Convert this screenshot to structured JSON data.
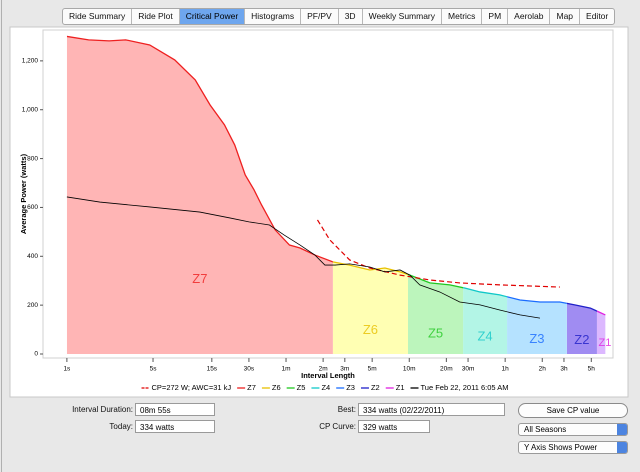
{
  "tabs": [
    "Ride Summary",
    "Ride Plot",
    "Critical Power",
    "Histograms",
    "PF/PV",
    "3D",
    "Weekly Summary",
    "Metrics",
    "PM",
    "Aerolab",
    "Map",
    "Editor"
  ],
  "selected_tab": 2,
  "chart_data": {
    "type": "line",
    "xlabel": "Interval Length",
    "ylabel": "Average Power (watts)",
    "xscale": "log",
    "xlim": [
      0.64,
      27000
    ],
    "ylim": [
      0,
      1310
    ],
    "xticks": [
      {
        "value": 1,
        "label": "1s"
      },
      {
        "value": 5,
        "label": "5s"
      },
      {
        "value": 15,
        "label": "15s"
      },
      {
        "value": 30,
        "label": "30s"
      },
      {
        "value": 60,
        "label": "1m"
      },
      {
        "value": 120,
        "label": "2m"
      },
      {
        "value": 180,
        "label": "3m"
      },
      {
        "value": 300,
        "label": "5m"
      },
      {
        "value": 600,
        "label": "10m"
      },
      {
        "value": 1200,
        "label": "20m"
      },
      {
        "value": 1800,
        "label": "30m"
      },
      {
        "value": 3600,
        "label": "1h"
      },
      {
        "value": 7200,
        "label": "2h"
      },
      {
        "value": 10800,
        "label": "3h"
      },
      {
        "value": 18000,
        "label": "5h"
      }
    ],
    "yticks": [
      0,
      200,
      400,
      600,
      800,
      {
        "value": 1000,
        "label": "1,000"
      },
      {
        "value": 1200,
        "label": "1,200"
      }
    ],
    "best_curve": {
      "x": [
        1,
        1.5,
        2.2,
        3,
        4.7,
        7.5,
        11,
        14.5,
        19,
        23,
        28,
        33,
        38,
        49,
        64,
        78,
        103,
        144,
        197,
        287,
        381,
        505,
        607,
        882,
        1280,
        1690,
        2250,
        3250,
        4750,
        6900,
        10000,
        13200,
        17700,
        23400
      ],
      "values": [
        1300,
        1286,
        1282,
        1286,
        1265,
        1204,
        1122,
        1020,
        938,
        856,
        733,
        672,
        610,
        508,
        446,
        434,
        405,
        377,
        364,
        344,
        352,
        336,
        323,
        291,
        283,
        270,
        254,
        242,
        221,
        213,
        213,
        201,
        188,
        160
      ]
    },
    "zones": [
      {
        "name": "Z1",
        "color": "#e020e0",
        "fill": "#dcb8ff",
        "xrange": [
          20000,
          27000
        ]
      },
      {
        "name": "Z2",
        "color": "#2020c8",
        "fill": "#a08cf2",
        "xrange": [
          11400,
          20000
        ]
      },
      {
        "name": "Z3",
        "color": "#1a6cff",
        "fill": "#b5e2ff",
        "xrange": [
          3730,
          11400
        ]
      },
      {
        "name": "Z4",
        "color": "#10c8c8",
        "fill": "#b3f5e6",
        "xrange": [
          1640,
          3730
        ]
      },
      {
        "name": "Z5",
        "color": "#20c820",
        "fill": "#bcf5bc",
        "xrange": [
          586,
          1640
        ]
      },
      {
        "name": "Z6",
        "color": "#e8c000",
        "fill": "#ffffb3",
        "xrange": [
          144,
          586
        ]
      },
      {
        "name": "Z7",
        "color": "#ee2020",
        "fill": "#ffb5b5",
        "xrange": [
          1,
          144
        ]
      }
    ],
    "series": [
      {
        "name": "CP=272 W; AWC=31 kJ",
        "color": "#e00000",
        "dashed": true,
        "x": [
          108,
          136,
          197,
          287,
          505,
          882,
          1540,
          3250,
          10000
        ],
        "values": [
          549,
          467,
          385,
          352,
          323,
          303,
          291,
          283,
          274
        ]
      },
      {
        "name": "Tue Feb 22, 2011 6:05 AM",
        "color": "#000000",
        "dashed": false,
        "x": [
          1,
          1.85,
          4.7,
          12,
          21,
          30,
          44,
          58,
          78,
          103,
          124,
          150,
          197,
          287,
          381,
          505,
          607,
          730,
          1060,
          1540,
          2250,
          3250,
          4750,
          6900
        ],
        "values": [
          643,
          622,
          602,
          581,
          557,
          541,
          528,
          487,
          446,
          405,
          364,
          364,
          369,
          356,
          336,
          344,
          323,
          283,
          254,
          213,
          201,
          180,
          160,
          147
        ]
      }
    ]
  },
  "form": {
    "interval_duration_label": "Interval Duration:",
    "interval_duration": "08m 55s",
    "today_label": "Today:",
    "today": "334 watts",
    "best_label": "Best:",
    "best": "334 watts (02/22/2011)",
    "cp_curve_label": "CP Curve:",
    "cp_curve": "329 watts",
    "save_button": "Save CP value",
    "season_select": "All Seasons",
    "axis_select": "Y Axis Shows Power"
  }
}
